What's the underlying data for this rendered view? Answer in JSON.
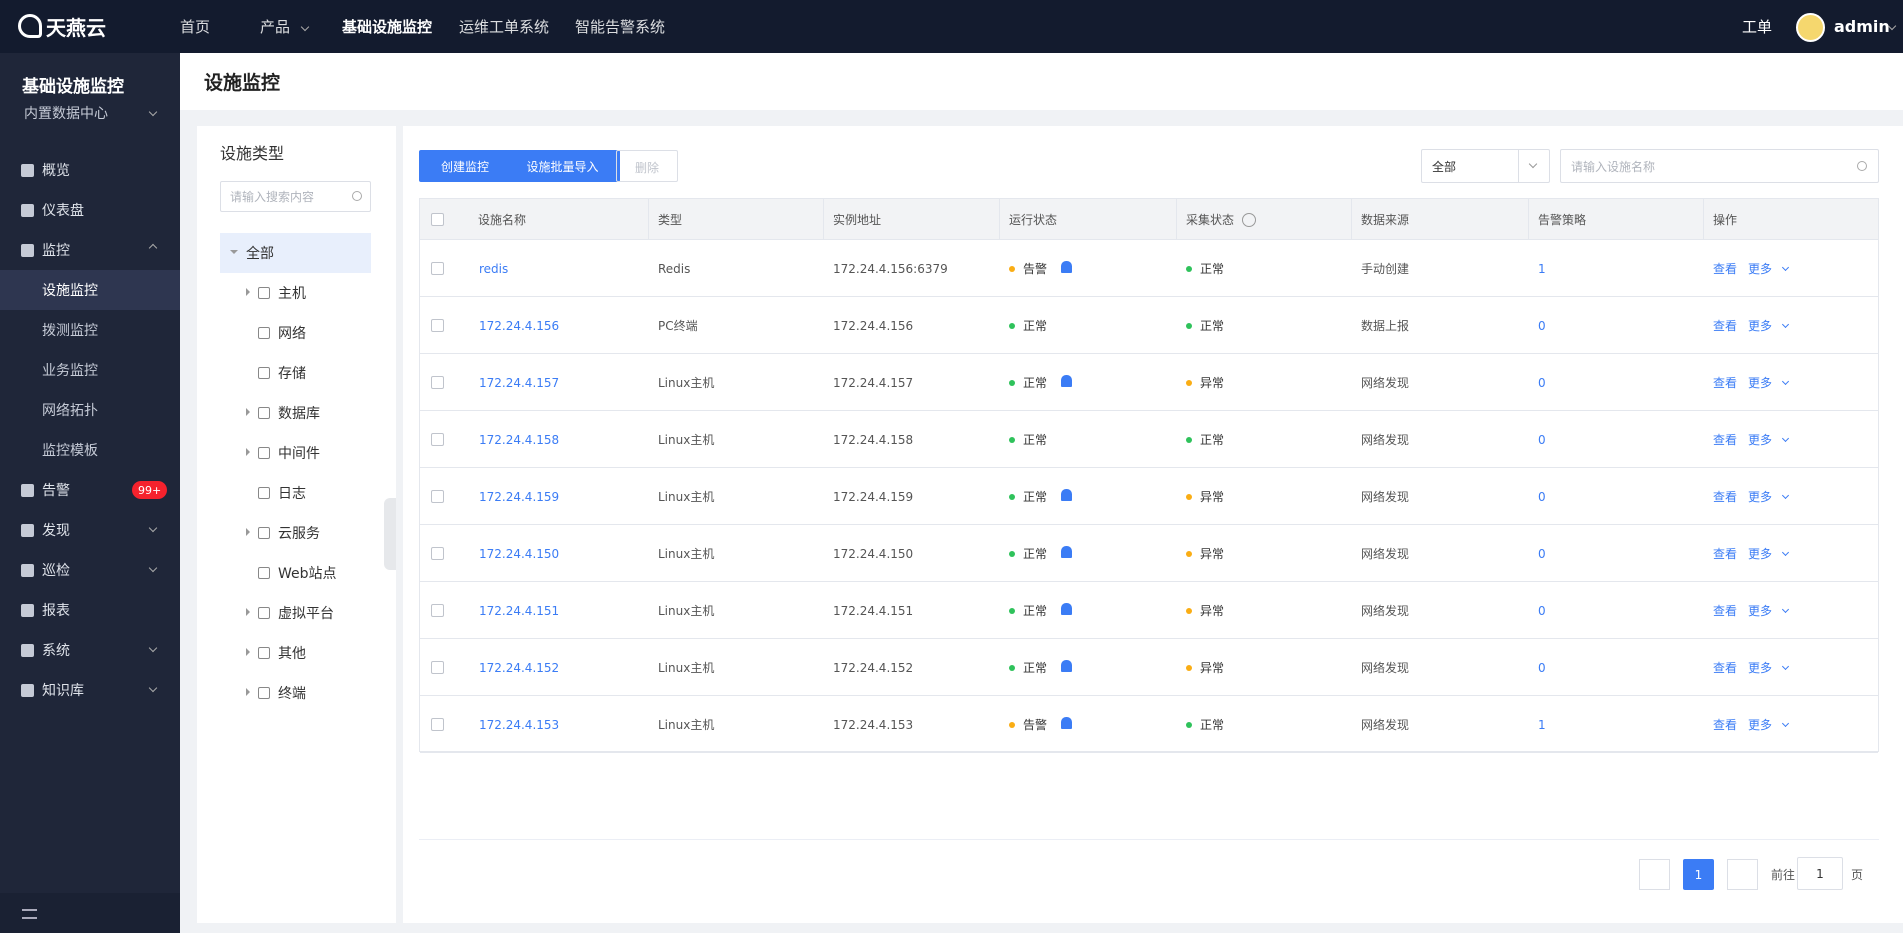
{
  "topbar": {
    "logo": "天燕云",
    "nav": [
      "首页",
      "产品",
      "基础设施监控",
      "运维工单系统",
      "智能告警系统"
    ],
    "workorder": "工单",
    "user": "admin"
  },
  "sidebar": {
    "title": "基础设施监控",
    "datacenter": "内置数据中心",
    "menu": [
      {
        "label": "概览"
      },
      {
        "label": "仪表盘"
      },
      {
        "label": "监控",
        "children": [
          "设施监控",
          "拨测监控",
          "业务监控",
          "网络拓扑",
          "监控模板"
        ]
      },
      {
        "label": "告警",
        "badge": "99+"
      },
      {
        "label": "发现"
      },
      {
        "label": "巡检"
      },
      {
        "label": "报表"
      },
      {
        "label": "系统"
      },
      {
        "label": "知识库"
      }
    ]
  },
  "page_title": "设施监控",
  "tree": {
    "title": "设施类型",
    "search_placeholder": "请输入搜索内容",
    "root": "全部",
    "items": [
      {
        "label": "主机",
        "expandable": true
      },
      {
        "label": "网络",
        "expandable": false
      },
      {
        "label": "存储",
        "expandable": false
      },
      {
        "label": "数据库",
        "expandable": true
      },
      {
        "label": "中间件",
        "expandable": true
      },
      {
        "label": "日志",
        "expandable": false
      },
      {
        "label": "云服务",
        "expandable": true
      },
      {
        "label": "Web站点",
        "expandable": false
      },
      {
        "label": "虚拟平台",
        "expandable": true
      },
      {
        "label": "其他",
        "expandable": true
      },
      {
        "label": "终端",
        "expandable": true
      }
    ]
  },
  "toolbar": {
    "buttons": [
      "创建监控",
      "设施批量导入",
      "删除"
    ],
    "filter": "全部",
    "search_placeholder": "请输入设施名称"
  },
  "table": {
    "columns": [
      "设施名称",
      "类型",
      "实例地址",
      "运行状态",
      "采集状态",
      "数据来源",
      "告警策略",
      "操作"
    ],
    "status_colors": {
      "正常": "#2fc25b",
      "告警": "#faad14",
      "异常": "#faad14"
    },
    "rows": [
      [
        "redis",
        "Redis",
        "172.24.4.156:6379",
        "告警",
        "正常",
        "手动创建",
        1,
        "查看",
        "更多"
      ],
      [
        "172.24.4.156",
        "PC终端",
        "172.24.4.156",
        "正常",
        "正常",
        "数据上报",
        0,
        "查看",
        "更多"
      ],
      [
        "172.24.4.157",
        "Linux主机",
        "172.24.4.157",
        "正常",
        "异常",
        "网络发现",
        0,
        "查看",
        "更多"
      ],
      [
        "172.24.4.158",
        "Linux主机",
        "172.24.4.158",
        "正常",
        "正常",
        "网络发现",
        0,
        "查看",
        "更多"
      ],
      [
        "172.24.4.159",
        "Linux主机",
        "172.24.4.159",
        "正常",
        "异常",
        "网络发现",
        0,
        "查看",
        "更多"
      ],
      [
        "172.24.4.150",
        "Linux主机",
        "172.24.4.150",
        "正常",
        "异常",
        "网络发现",
        0,
        "查看",
        "更多"
      ],
      [
        "172.24.4.151",
        "Linux主机",
        "172.24.4.151",
        "正常",
        "异常",
        "网络发现",
        0,
        "查看",
        "更多"
      ],
      [
        "172.24.4.152",
        "Linux主机",
        "172.24.4.152",
        "正常",
        "异常",
        "网络发现",
        0,
        "查看",
        "更多"
      ],
      [
        "172.24.4.153",
        "Linux主机",
        "172.24.4.153",
        "告警",
        "正常",
        "网络发现",
        1,
        "查看",
        "更多"
      ]
    ]
  },
  "pagination": {
    "page": 1,
    "goto_prefix": "前往",
    "goto_value": 1,
    "goto_suffix": "页"
  }
}
